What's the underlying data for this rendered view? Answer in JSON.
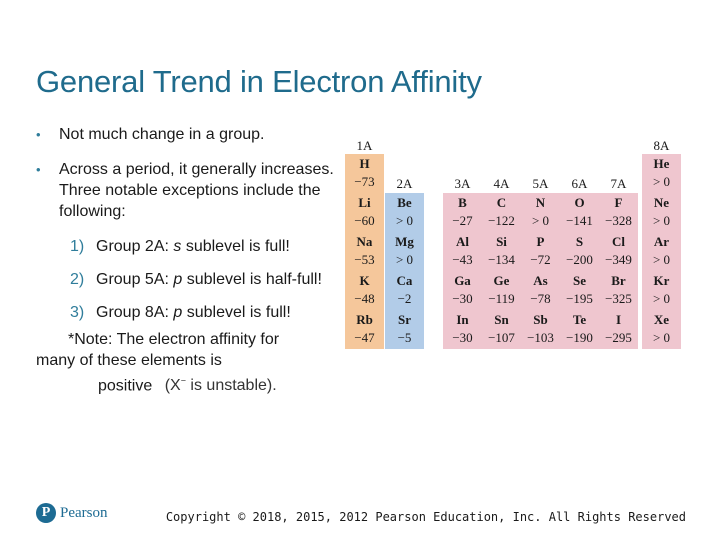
{
  "title": "General Trend in Electron Affinity",
  "bullets": [
    {
      "text": "Not much change in a group."
    },
    {
      "text": "Across a period, it generally increases. Three notable exceptions include the following:"
    }
  ],
  "sub_items": [
    {
      "num": "1)",
      "pre": "Group 2A: ",
      "italic": "s",
      "post": " sublevel is full!"
    },
    {
      "num": "2)",
      "pre": "Group 5A: ",
      "italic": "p",
      "post": " sublevel is half-full!"
    },
    {
      "num": "3)",
      "pre": "Group 8A: ",
      "italic": "p",
      "post": " sublevel is full!"
    }
  ],
  "note": {
    "line1": "*Note: The electron affinity for",
    "line2": "many of these elements is",
    "line3": "positive",
    "formula_base": "(X",
    "formula_sup": "−",
    "formula_rest": " is unstable)."
  },
  "table": {
    "group_labels": [
      "1A",
      "2A",
      "3A",
      "4A",
      "5A",
      "6A",
      "7A",
      "8A"
    ],
    "cells": {
      "H": "−73",
      "He": "> 0",
      "Li": "−60",
      "Be": "> 0",
      "B": "−27",
      "C": "−122",
      "N": "> 0",
      "O": "−141",
      "F": "−328",
      "Ne": "> 0",
      "Na": "−53",
      "Mg": "> 0",
      "Al": "−43",
      "Si": "−134",
      "P": "−72",
      "S": "−200",
      "Cl": "−349",
      "Ar": "> 0",
      "K": "−48",
      "Ca": "−2",
      "Ga": "−30",
      "Ge": "−119",
      "As": "−78",
      "Se": "−195",
      "Br": "−325",
      "Kr": "> 0",
      "Rb": "−47",
      "Sr": "−5",
      "In": "−30",
      "Sn": "−107",
      "Sb": "−103",
      "Te": "−190",
      "I": "−295",
      "Xe": "> 0"
    },
    "colors": {
      "group1": "#f5c79b",
      "group2": "#b2cce8",
      "pblock": "#efc6cf"
    }
  },
  "footer": {
    "logo_text": "Pearson",
    "copyright": "Copyright © 2018, 2015, 2012 Pearson Education, Inc. All Rights Reserved"
  }
}
